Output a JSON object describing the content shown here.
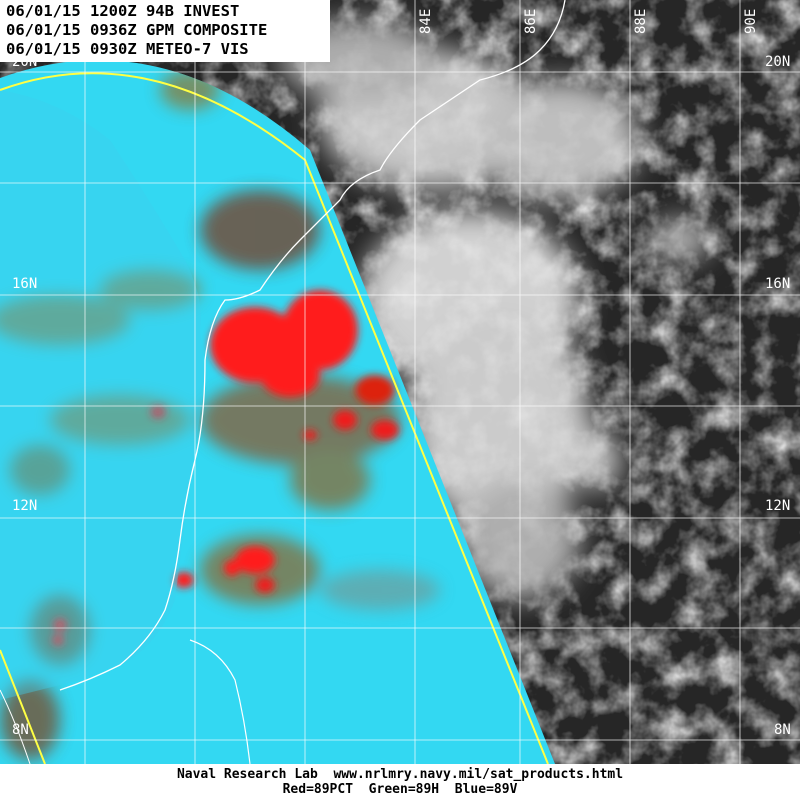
{
  "header": {
    "line1": "06/01/15 1200Z 94B INVEST",
    "line2": "06/01/15 0936Z GPM COMPOSITE",
    "line3": "06/01/15 0930Z METEO-7 VIS"
  },
  "lat_labels": [
    "20N",
    "16N",
    "12N",
    "8N"
  ],
  "lon_labels": [
    "84E",
    "86E",
    "88E",
    "90E"
  ],
  "footer": {
    "line1": "Naval Research Lab  www.nrlmry.navy.mil/sat_products.html",
    "line2": "Red=89PCT  Green=89H  Blue=89V"
  },
  "colors": {
    "microwave_background": "#33d8f2",
    "convection": "#ff1a1a",
    "swath_edge": "#ffff44",
    "grid": "#ffffff"
  }
}
